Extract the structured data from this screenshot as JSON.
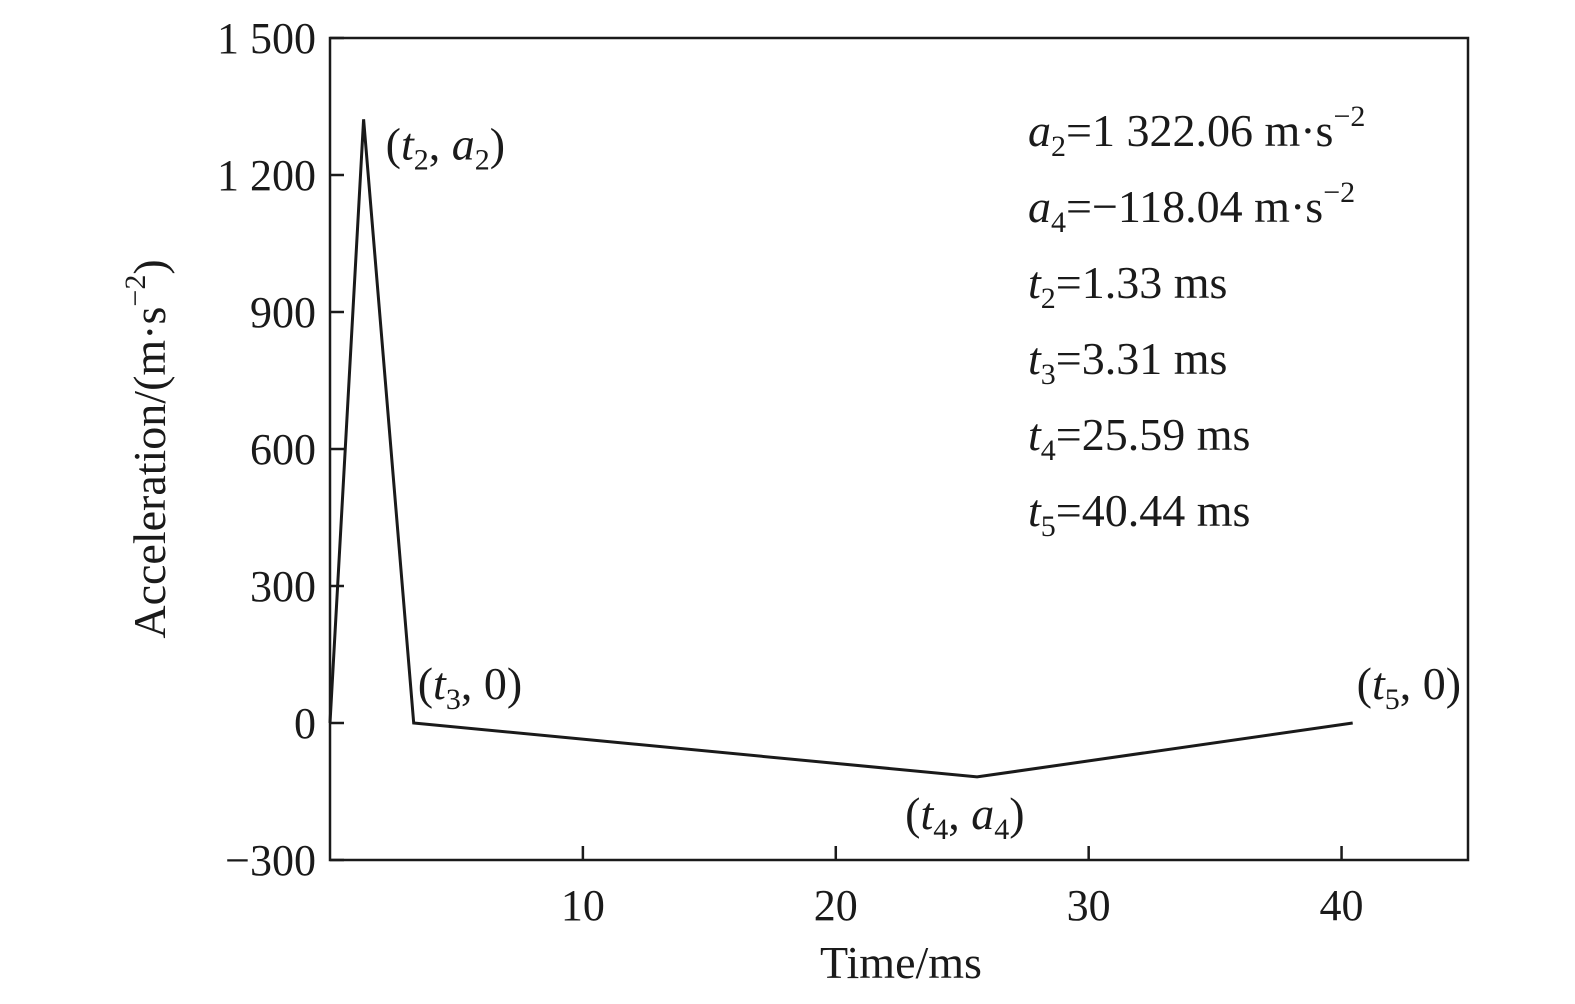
{
  "chart_data": {
    "type": "line",
    "xlabel": "Time/ms",
    "ylabel": "Acceleration/(m·s",
    "ylabel_sup": "−2",
    "ylabel_close": ")",
    "xlim": [
      0,
      45
    ],
    "ylim": [
      -300,
      1500
    ],
    "x_ticks": [
      10,
      20,
      30,
      40
    ],
    "x_tick_labels": [
      "10",
      "20",
      "30",
      "40"
    ],
    "y_ticks": [
      -300,
      0,
      300,
      600,
      900,
      1200,
      1500
    ],
    "y_tick_labels": [
      "−300",
      "0",
      "300",
      "600",
      "900",
      "1 200",
      "1 500"
    ],
    "grid": false,
    "series": [
      {
        "x": [
          0,
          1.33,
          3.31,
          25.59,
          40.44
        ],
        "y": [
          0,
          1322.06,
          0,
          -118.04,
          0
        ],
        "color": "#1a1a1a"
      }
    ],
    "point_labels": [
      {
        "x": 1.33,
        "y": 1322.06,
        "var": "t",
        "sub": "2",
        "var2": "a",
        "sub2": "2",
        "anchor": "right"
      },
      {
        "x": 3.31,
        "y": 0,
        "var": "t",
        "sub": "3",
        "rest": "0",
        "anchor": "above"
      },
      {
        "x": 25.59,
        "y": -118.04,
        "var": "t",
        "sub": "4",
        "var2": "a",
        "sub2": "4",
        "anchor": "below"
      },
      {
        "x": 40.44,
        "y": 0,
        "var": "t",
        "sub": "5",
        "rest": "0",
        "anchor": "above"
      }
    ],
    "annotations": [
      {
        "var": "a",
        "sub": "2",
        "value": "=1 322.06 m·s",
        "sup": "−2"
      },
      {
        "var": "a",
        "sub": "4",
        "value": "=−118.04 m·s",
        "sup": "−2"
      },
      {
        "var": "t",
        "sub": "2",
        "value": "=1.33 ms",
        "sup": ""
      },
      {
        "var": "t",
        "sub": "3",
        "value": "=3.31 ms",
        "sup": ""
      },
      {
        "var": "t",
        "sub": "4",
        "value": "=25.59 ms",
        "sup": ""
      },
      {
        "var": "t",
        "sub": "5",
        "value": "=40.44 ms",
        "sup": ""
      }
    ]
  }
}
